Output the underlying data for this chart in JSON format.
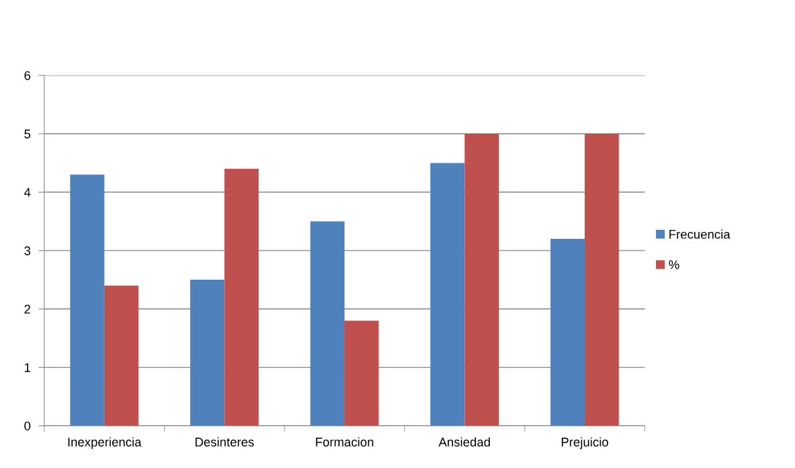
{
  "chart_data": {
    "type": "bar",
    "categories": [
      "Inexperiencia",
      "Desinteres",
      "Formacion",
      "Ansiedad",
      "Prejuicio"
    ],
    "series": [
      {
        "name": "Frecuencia",
        "color": "#4f81bd",
        "values": [
          4.3,
          2.5,
          3.5,
          4.5,
          3.2
        ]
      },
      {
        "name": "%",
        "color": "#c0504d",
        "values": [
          2.4,
          4.4,
          1.8,
          5,
          5
        ]
      }
    ],
    "ylim": [
      0,
      6
    ],
    "yticks": [
      0,
      1,
      2,
      3,
      4,
      5,
      6
    ],
    "grid": "y",
    "legend": "right"
  }
}
